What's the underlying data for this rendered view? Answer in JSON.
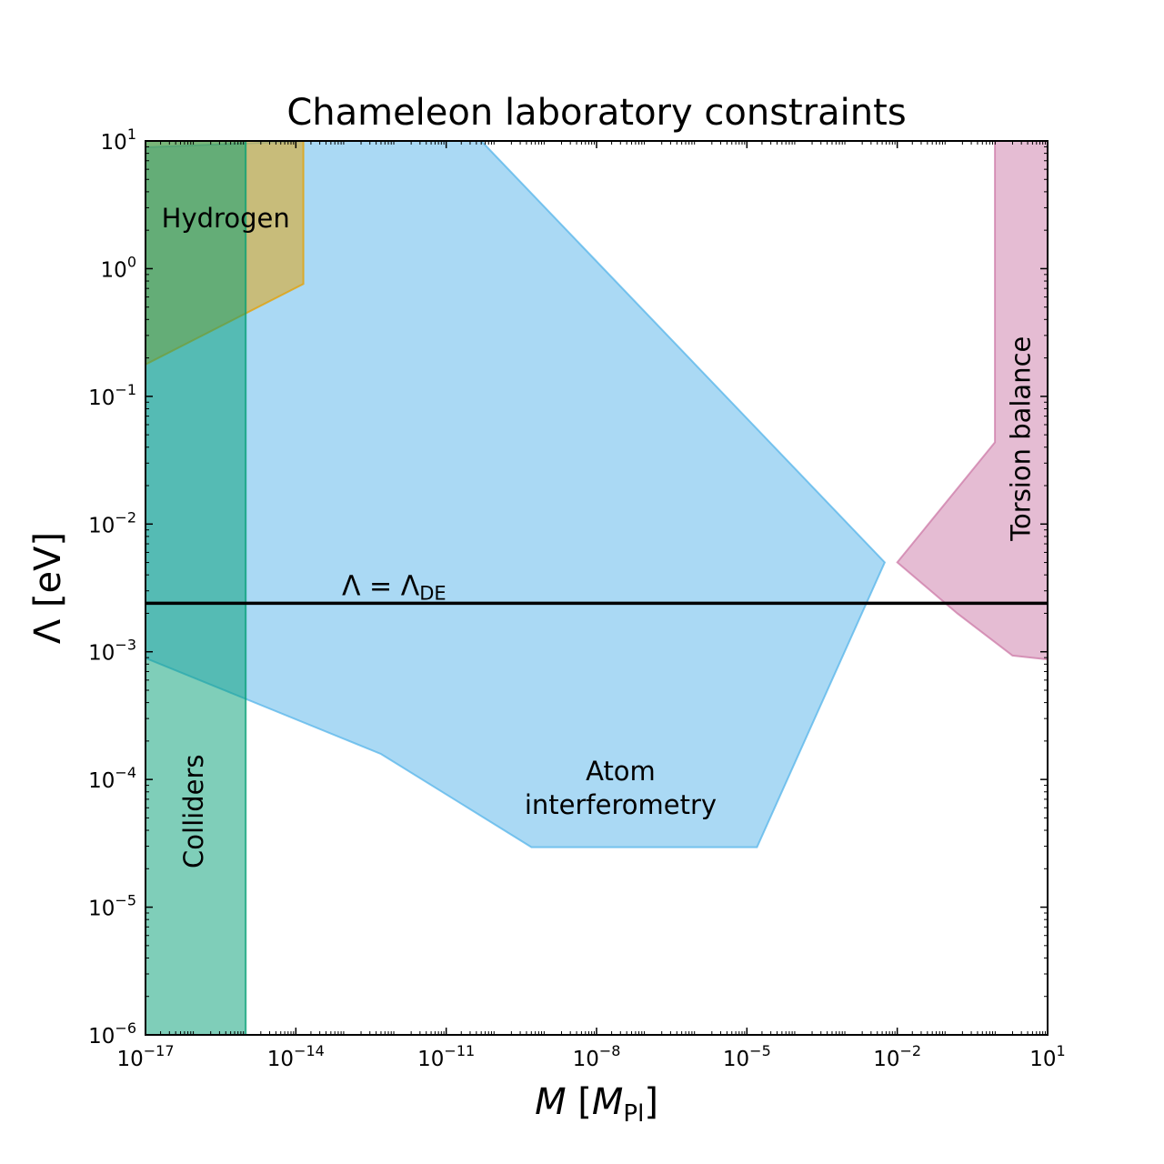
{
  "chart_data": {
    "type": "area",
    "title": "Chameleon laboratory constraints",
    "xlabel": {
      "main": "M",
      "open": "[",
      "sym": "M",
      "sub": "Pl",
      "close": "]"
    },
    "ylabel": {
      "main": "Λ [eV]"
    },
    "x_scale": "log",
    "y_scale": "log",
    "xlim_exp": [
      -17,
      1
    ],
    "ylim_exp": [
      -6,
      1
    ],
    "grid": false,
    "x_ticks": [
      {
        "base": "10",
        "exp": "−17",
        "v": -17
      },
      {
        "base": "10",
        "exp": "−14",
        "v": -14
      },
      {
        "base": "10",
        "exp": "−11",
        "v": -11
      },
      {
        "base": "10",
        "exp": "−8",
        "v": -8
      },
      {
        "base": "10",
        "exp": "−5",
        "v": -5
      },
      {
        "base": "10",
        "exp": "−2",
        "v": -2
      },
      {
        "base": "10",
        "exp": "1",
        "v": 1
      }
    ],
    "y_ticks": [
      {
        "base": "10",
        "exp": "1",
        "v": 1
      },
      {
        "base": "10",
        "exp": "0",
        "v": 0
      },
      {
        "base": "10",
        "exp": "−1",
        "v": -1
      },
      {
        "base": "10",
        "exp": "−2",
        "v": -2
      },
      {
        "base": "10",
        "exp": "−3",
        "v": -3
      },
      {
        "base": "10",
        "exp": "−4",
        "v": -4
      },
      {
        "base": "10",
        "exp": "−5",
        "v": -5
      },
      {
        "base": "10",
        "exp": "−6",
        "v": -6
      }
    ],
    "regions": [
      {
        "name": "Atom interferometry",
        "color": "#56B4E9",
        "points_log10": [
          [
            -17,
            0.95
          ],
          [
            -13.8,
            1
          ],
          [
            -10.3,
            1
          ],
          [
            -2.25,
            -2.3
          ],
          [
            -4.8,
            -4.53
          ],
          [
            -9.3,
            -4.53
          ],
          [
            -12.3,
            -3.8
          ],
          [
            -17,
            -3.05
          ]
        ]
      },
      {
        "name": "Torsion balance",
        "color": "#CC79A7",
        "points_log10": [
          [
            -10.28,
            1
          ],
          [
            -0.05,
            1
          ],
          [
            -0.05,
            -1.36
          ],
          [
            -2,
            -2.3
          ],
          [
            -0.8,
            -2.7
          ],
          [
            0.3,
            -3.03
          ],
          [
            1,
            -3.06
          ],
          [
            1,
            1
          ]
        ]
      },
      {
        "name": "Hydrogen",
        "color": "#E69F00",
        "points_log10": [
          [
            -17,
            -0.75
          ],
          [
            -13.85,
            -0.12
          ],
          [
            -13.85,
            1
          ],
          [
            -17,
            1
          ]
        ]
      },
      {
        "name": "Colliders",
        "color": "#009E73",
        "points_log10": [
          [
            -17,
            -6
          ],
          [
            -15,
            -6
          ],
          [
            -15,
            1
          ],
          [
            -17,
            1
          ]
        ]
      }
    ],
    "reference_line": {
      "label_main": "Λ = Λ",
      "label_sub": "DE",
      "y_log10": -2.62
    },
    "labels": [
      {
        "key": "hydrogen",
        "lines": [
          "Hydrogen"
        ],
        "x_log10": -15.4,
        "y_log10": 0.38,
        "rotate": 0
      },
      {
        "key": "atom",
        "lines": [
          "Atom",
          "interferometry"
        ],
        "x_log10": -7.52,
        "y_log10": -4.08,
        "rotate": 0
      },
      {
        "key": "torsion",
        "lines": [
          "Torsion balance"
        ],
        "x_log10": 0.5,
        "y_log10": -1.33,
        "rotate": -90
      },
      {
        "key": "colliders",
        "lines": [
          "Colliders"
        ],
        "x_log10": -16.0,
        "y_log10": -4.25,
        "rotate": -90
      }
    ]
  }
}
